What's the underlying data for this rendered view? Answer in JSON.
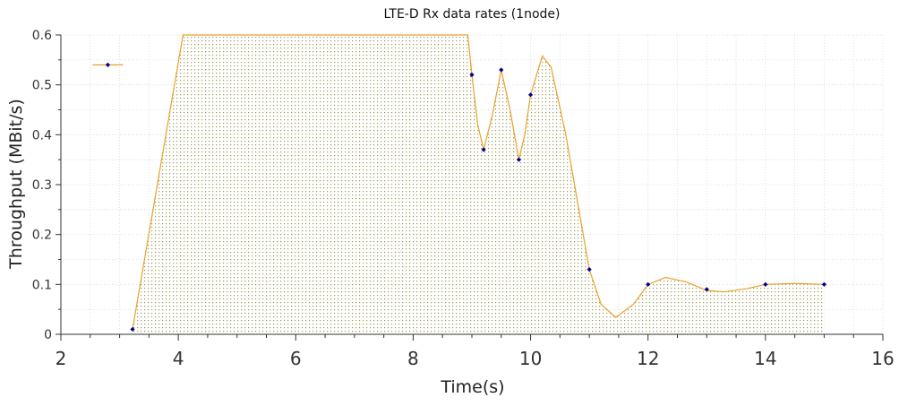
{
  "chart_data": {
    "type": "line",
    "title": "LTE-D Rx data rates (1node)",
    "xlabel": "Time(s)",
    "ylabel": "Throughput (MBit/s)",
    "xlim": [
      2,
      16
    ],
    "ylim": [
      0,
      0.6
    ],
    "x_ticks": [
      "2",
      "4",
      "6",
      "8",
      "10",
      "12",
      "14",
      "16"
    ],
    "y_ticks": [
      "0",
      "0.1",
      "0.2",
      "0.3",
      "0.4",
      "0.5",
      "0.6"
    ],
    "grid": true,
    "fill_under_curve": true,
    "series": [
      {
        "color": "#e8a02c",
        "marker_color": "#00008b",
        "isolated_points": [
          {
            "x": 2.8,
            "y": 0.54
          }
        ],
        "curve": [
          {
            "x": 3.22,
            "y": 0.01
          },
          {
            "x": 4.08,
            "y": 0.6
          },
          {
            "x": 8.93,
            "y": 0.6
          },
          {
            "x": 9.0,
            "y": 0.52
          },
          {
            "x": 9.1,
            "y": 0.42
          },
          {
            "x": 9.2,
            "y": 0.37
          },
          {
            "x": 9.35,
            "y": 0.44
          },
          {
            "x": 9.5,
            "y": 0.53
          },
          {
            "x": 9.65,
            "y": 0.45
          },
          {
            "x": 9.8,
            "y": 0.35
          },
          {
            "x": 9.9,
            "y": 0.4
          },
          {
            "x": 10.0,
            "y": 0.48
          },
          {
            "x": 10.2,
            "y": 0.558
          },
          {
            "x": 10.35,
            "y": 0.535
          },
          {
            "x": 10.6,
            "y": 0.4
          },
          {
            "x": 11.0,
            "y": 0.13
          },
          {
            "x": 11.2,
            "y": 0.06
          },
          {
            "x": 11.45,
            "y": 0.034
          },
          {
            "x": 11.75,
            "y": 0.06
          },
          {
            "x": 12.0,
            "y": 0.1
          },
          {
            "x": 12.3,
            "y": 0.114
          },
          {
            "x": 12.65,
            "y": 0.105
          },
          {
            "x": 13.0,
            "y": 0.088
          },
          {
            "x": 13.3,
            "y": 0.085
          },
          {
            "x": 13.7,
            "y": 0.092
          },
          {
            "x": 14.0,
            "y": 0.1
          },
          {
            "x": 14.5,
            "y": 0.102
          },
          {
            "x": 15.0,
            "y": 0.1
          }
        ],
        "markers": [
          {
            "x": 2.8,
            "y": 0.54
          },
          {
            "x": 3.22,
            "y": 0.01
          },
          {
            "x": 9.0,
            "y": 0.52
          },
          {
            "x": 9.2,
            "y": 0.37
          },
          {
            "x": 9.5,
            "y": 0.53
          },
          {
            "x": 9.8,
            "y": 0.35
          },
          {
            "x": 10.0,
            "y": 0.48
          },
          {
            "x": 11.0,
            "y": 0.13
          },
          {
            "x": 12.0,
            "y": 0.1
          },
          {
            "x": 13.0,
            "y": 0.09
          },
          {
            "x": 14.0,
            "y": 0.1
          },
          {
            "x": 15.0,
            "y": 0.1
          }
        ]
      }
    ]
  }
}
